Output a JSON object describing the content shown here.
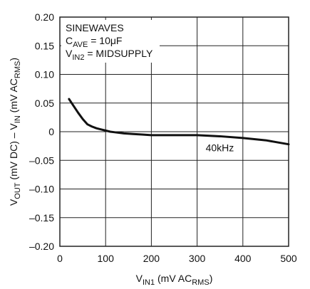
{
  "chart_data": {
    "type": "line",
    "title": "",
    "xlabel": {
      "main": "V",
      "sub": "IN1",
      "rest": " (mV AC",
      "sub2": "RMS",
      "end": ")"
    },
    "ylabel": {
      "p1": "V",
      "s1": "OUT",
      "p2": " (mV DC) – V",
      "s2": "IN",
      "p3": " (mV AC",
      "s3": "RMS",
      "p4": ")"
    },
    "xlim": [
      0,
      500
    ],
    "ylim": [
      -0.2,
      0.2
    ],
    "x_ticks": [
      0,
      100,
      200,
      300,
      400,
      500
    ],
    "x_tick_labels": [
      "0",
      "100",
      "200",
      "300",
      "400",
      "500"
    ],
    "y_ticks": [
      0.2,
      0.15,
      0.1,
      0.05,
      0,
      -0.05,
      -0.1,
      -0.15,
      -0.2
    ],
    "y_tick_labels": [
      "0.20",
      "0.15",
      "0.10",
      "0.05",
      "0",
      "–0.05",
      "–0.10",
      "–0.15",
      "–0.20"
    ],
    "grid": true,
    "annotations": {
      "line1": "SINEWAVES",
      "line2": {
        "p1": "C",
        "s1": "AVE",
        "p2": " = 10μF"
      },
      "line3": {
        "p1": "V",
        "s1": "IN2",
        "p2": " = MIDSUPPLY"
      }
    },
    "series": [
      {
        "name": "40kHz",
        "x": [
          20,
          30,
          40,
          50,
          60,
          70,
          80,
          90,
          100,
          110,
          120,
          140,
          160,
          180,
          200,
          250,
          300,
          350,
          400,
          450,
          500
        ],
        "y": [
          0.057,
          0.045,
          0.033,
          0.022,
          0.013,
          0.009,
          0.006,
          0.004,
          0.002,
          0.0,
          -0.001,
          -0.003,
          -0.004,
          -0.005,
          -0.006,
          -0.006,
          -0.006,
          -0.008,
          -0.011,
          -0.015,
          -0.022
        ]
      }
    ],
    "colors": {
      "line": "#111111",
      "grid": "#222222"
    }
  }
}
